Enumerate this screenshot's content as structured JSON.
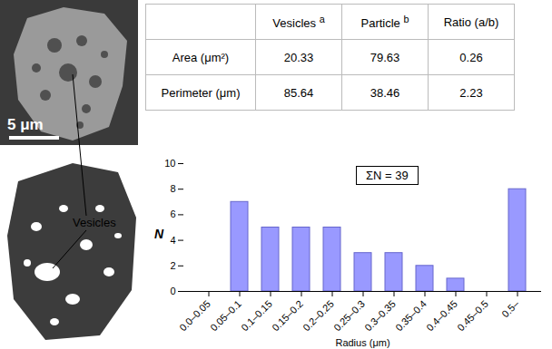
{
  "chart_data": {
    "type": "bar",
    "categories": [
      "0.0–0.05",
      "0.05–0.1",
      "0.1–0.15",
      "0.15–0.2",
      "0.2–0.25",
      "0.25–0.3",
      "0.3–0.35",
      "0.35–0.4",
      "0.4–0.45",
      "0.45–0.5",
      "0.5–"
    ],
    "values": [
      0,
      7,
      5,
      5,
      5,
      3,
      3,
      2,
      1,
      0,
      8
    ],
    "color": "#9999ff",
    "ylim": [
      0,
      10
    ],
    "yticks": [
      0,
      2,
      4,
      6,
      8,
      10
    ],
    "x_label": "Radius (μm)",
    "y_label": "N",
    "annotations": [
      "ΣN = 39"
    ],
    "grid": false
  },
  "table": {
    "header": [
      "",
      {
        "text": "Vesicles",
        "sup": "a"
      },
      {
        "text": "Particle",
        "sup": "b"
      },
      "Ratio (a/b)"
    ],
    "rows": [
      [
        "Area (μm²)",
        20.33,
        79.63,
        0.26
      ],
      [
        "Perimeter (μm)",
        85.64,
        38.46,
        2.23
      ]
    ]
  },
  "images": {
    "scale_bar": "5 μm",
    "callout": "Vesicles"
  }
}
